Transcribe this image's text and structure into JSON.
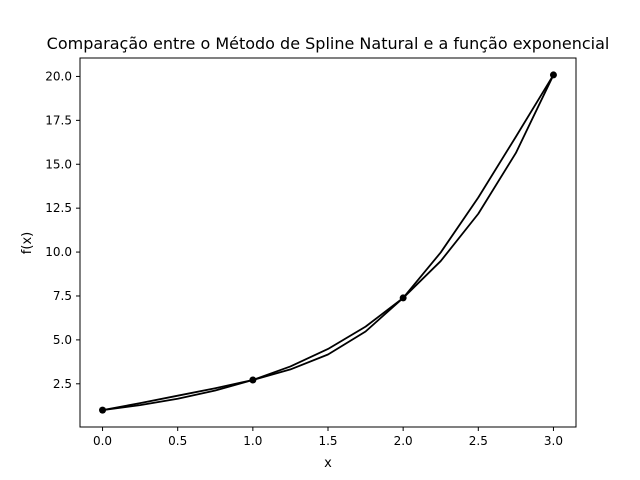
{
  "chart_data": {
    "type": "line",
    "title": "Comparação entre o Método de Spline Natural e a função exponencial",
    "xlabel": "x",
    "ylabel": "f(x)",
    "xlim": [
      -0.15,
      3.15
    ],
    "ylim": [
      0.04,
      21.05
    ],
    "xticks": [
      0.0,
      0.5,
      1.0,
      1.5,
      2.0,
      2.5,
      3.0
    ],
    "xtick_labels": [
      "0.0",
      "0.5",
      "1.0",
      "1.5",
      "2.0",
      "2.5",
      "3.0"
    ],
    "yticks": [
      2.5,
      5.0,
      7.5,
      10.0,
      12.5,
      15.0,
      17.5,
      20.0
    ],
    "ytick_labels": [
      "2.5",
      "5.0",
      "7.5",
      "10.0",
      "12.5",
      "15.0",
      "17.5",
      "20.0"
    ],
    "grid": false,
    "legend": "none",
    "points": {
      "x": [
        0,
        1,
        2,
        3
      ],
      "y": [
        1.0,
        2.718,
        7.389,
        20.086
      ]
    },
    "series": [
      {
        "color": "#000000",
        "x": [
          0.0,
          0.25,
          0.5,
          0.75,
          1.0,
          1.25,
          1.5,
          1.75,
          2.0,
          2.25,
          2.5,
          2.75,
          3.0
        ],
        "y": [
          1.0,
          1.284,
          1.649,
          2.117,
          2.718,
          3.49,
          4.482,
          5.755,
          7.389,
          9.488,
          12.182,
          15.643,
          20.086
        ]
      },
      {
        "color": "#000000",
        "x": [
          0.0,
          0.25,
          0.5,
          0.75,
          1.0,
          1.25,
          1.5,
          1.75,
          2.0,
          2.25,
          2.5,
          2.75,
          3.0
        ],
        "y": [
          1.0,
          1.399,
          1.823,
          2.249,
          2.718,
          3.319,
          4.167,
          5.477,
          7.389,
          9.979,
          13.107,
          16.568,
          20.086
        ]
      }
    ],
    "marker_color": "#000000"
  }
}
